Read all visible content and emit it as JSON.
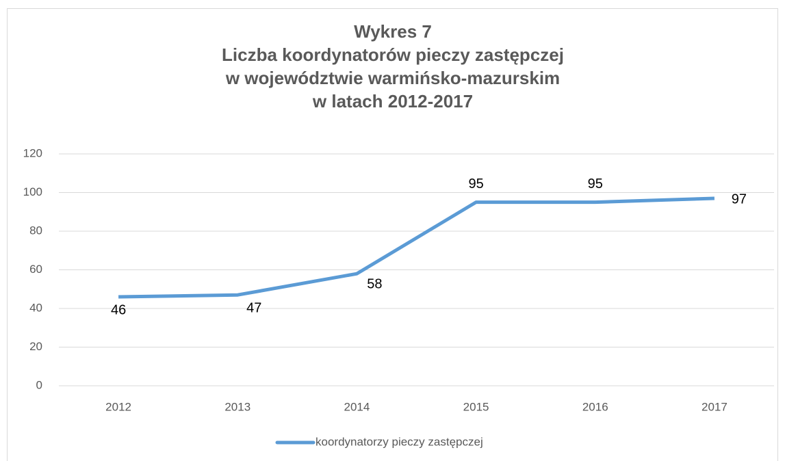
{
  "chart_data": {
    "type": "line",
    "title": [
      "Wykres 7",
      "Liczba koordynatorów pieczy zastępczej",
      "w województwie warmińsko-mazurskim",
      "w latach 2012-2017"
    ],
    "categories": [
      "2012",
      "2013",
      "2014",
      "2015",
      "2016",
      "2017"
    ],
    "series": [
      {
        "name": "koordynatorzy pieczy zastępczej",
        "color": "#5b9bd5",
        "values": [
          46,
          47,
          58,
          95,
          95,
          97
        ]
      }
    ],
    "ylim": [
      0,
      120
    ],
    "yticks": [
      0,
      20,
      40,
      60,
      80,
      100,
      120
    ],
    "grid": true,
    "legend": "bottom"
  }
}
